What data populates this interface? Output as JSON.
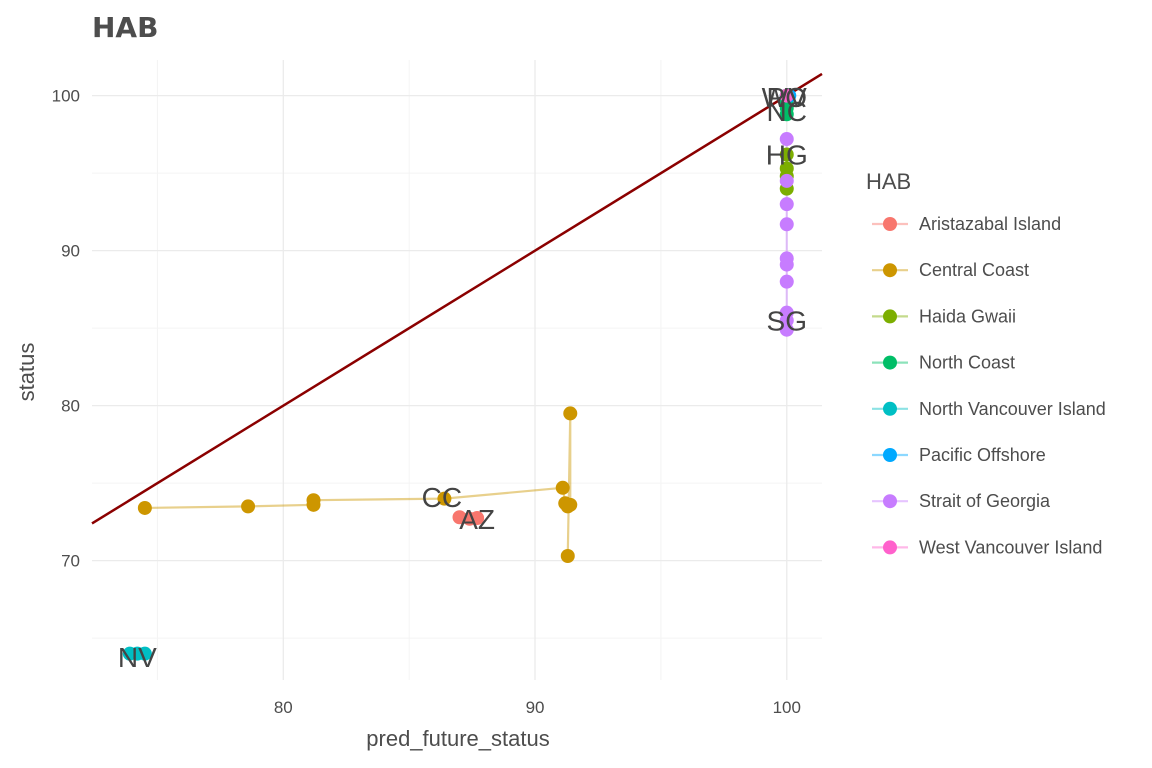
{
  "chart_data": {
    "type": "scatter",
    "title": "HAB",
    "xlabel": "pred_future_status",
    "ylabel": "status",
    "xlim": [
      72.4,
      101.4
    ],
    "ylim": [
      62.3,
      102.3
    ],
    "x_ticks": [
      80,
      90,
      100
    ],
    "y_ticks": [
      70,
      80,
      90,
      100
    ],
    "grid": true,
    "legend_position": "right",
    "legend_title": "HAB",
    "reference_line": {
      "slope": 1,
      "intercept": 0,
      "color": "#8b0000"
    },
    "series": [
      {
        "name": "Aristazabal Island",
        "color": "#f8766d",
        "label": "AZ",
        "points": [
          [
            87.0,
            72.8
          ],
          [
            87.4,
            72.7
          ],
          [
            87.7,
            72.75
          ]
        ],
        "label_at": [
          87.7,
          72.7
        ]
      },
      {
        "name": "Central Coast",
        "color": "#cd9600",
        "label": "CC",
        "points": [
          [
            74.5,
            73.4
          ],
          [
            78.6,
            73.5
          ],
          [
            81.2,
            73.6
          ],
          [
            81.2,
            73.9
          ],
          [
            86.4,
            74.0
          ],
          [
            91.1,
            74.7
          ],
          [
            91.2,
            73.7
          ],
          [
            91.3,
            73.5
          ],
          [
            91.4,
            73.6
          ],
          [
            91.4,
            79.5
          ],
          [
            91.3,
            70.3
          ]
        ],
        "label_at": [
          86.3,
          74.1
        ]
      },
      {
        "name": "Haida Gwaii",
        "color": "#7cae00",
        "label": "HG",
        "points": [
          [
            100,
            96.2
          ],
          [
            100,
            95.3
          ],
          [
            100,
            94.8
          ],
          [
            100,
            94.0
          ]
        ],
        "label_at": [
          100,
          96.2
        ]
      },
      {
        "name": "North Coast",
        "color": "#00be67",
        "label": "NC",
        "points": [
          [
            100,
            100.0
          ],
          [
            100,
            99.6
          ],
          [
            100,
            99.2
          ],
          [
            100,
            98.8
          ]
        ],
        "label_at": [
          100,
          99.0
        ]
      },
      {
        "name": "North Vancouver Island",
        "color": "#00bfc4",
        "label": "NV",
        "points": [
          [
            73.9,
            64.0
          ],
          [
            74.2,
            64.0
          ],
          [
            74.5,
            64.0
          ]
        ],
        "label_at": [
          74.2,
          63.8
        ]
      },
      {
        "name": "Pacific Offshore",
        "color": "#00a9ff",
        "label": "PO",
        "points": [
          [
            100,
            100.0
          ],
          [
            100.1,
            100.0
          ]
        ],
        "label_at": [
          100,
          99.9
        ]
      },
      {
        "name": "Strait of Georgia",
        "color": "#c77cff",
        "label": "SG",
        "points": [
          [
            100,
            97.2
          ],
          [
            100,
            94.5
          ],
          [
            100,
            93.0
          ],
          [
            100,
            91.7
          ],
          [
            100,
            89.5
          ],
          [
            100,
            89.1
          ],
          [
            100,
            88.0
          ],
          [
            100,
            86.0
          ],
          [
            100,
            85.5
          ],
          [
            100,
            84.9
          ]
        ],
        "label_at": [
          100,
          85.5
        ]
      },
      {
        "name": "West Vancouver Island",
        "color": "#ff61cc",
        "label": "WV",
        "points": [
          [
            100,
            100.0
          ]
        ],
        "label_at": [
          99.9,
          99.9
        ]
      }
    ]
  }
}
